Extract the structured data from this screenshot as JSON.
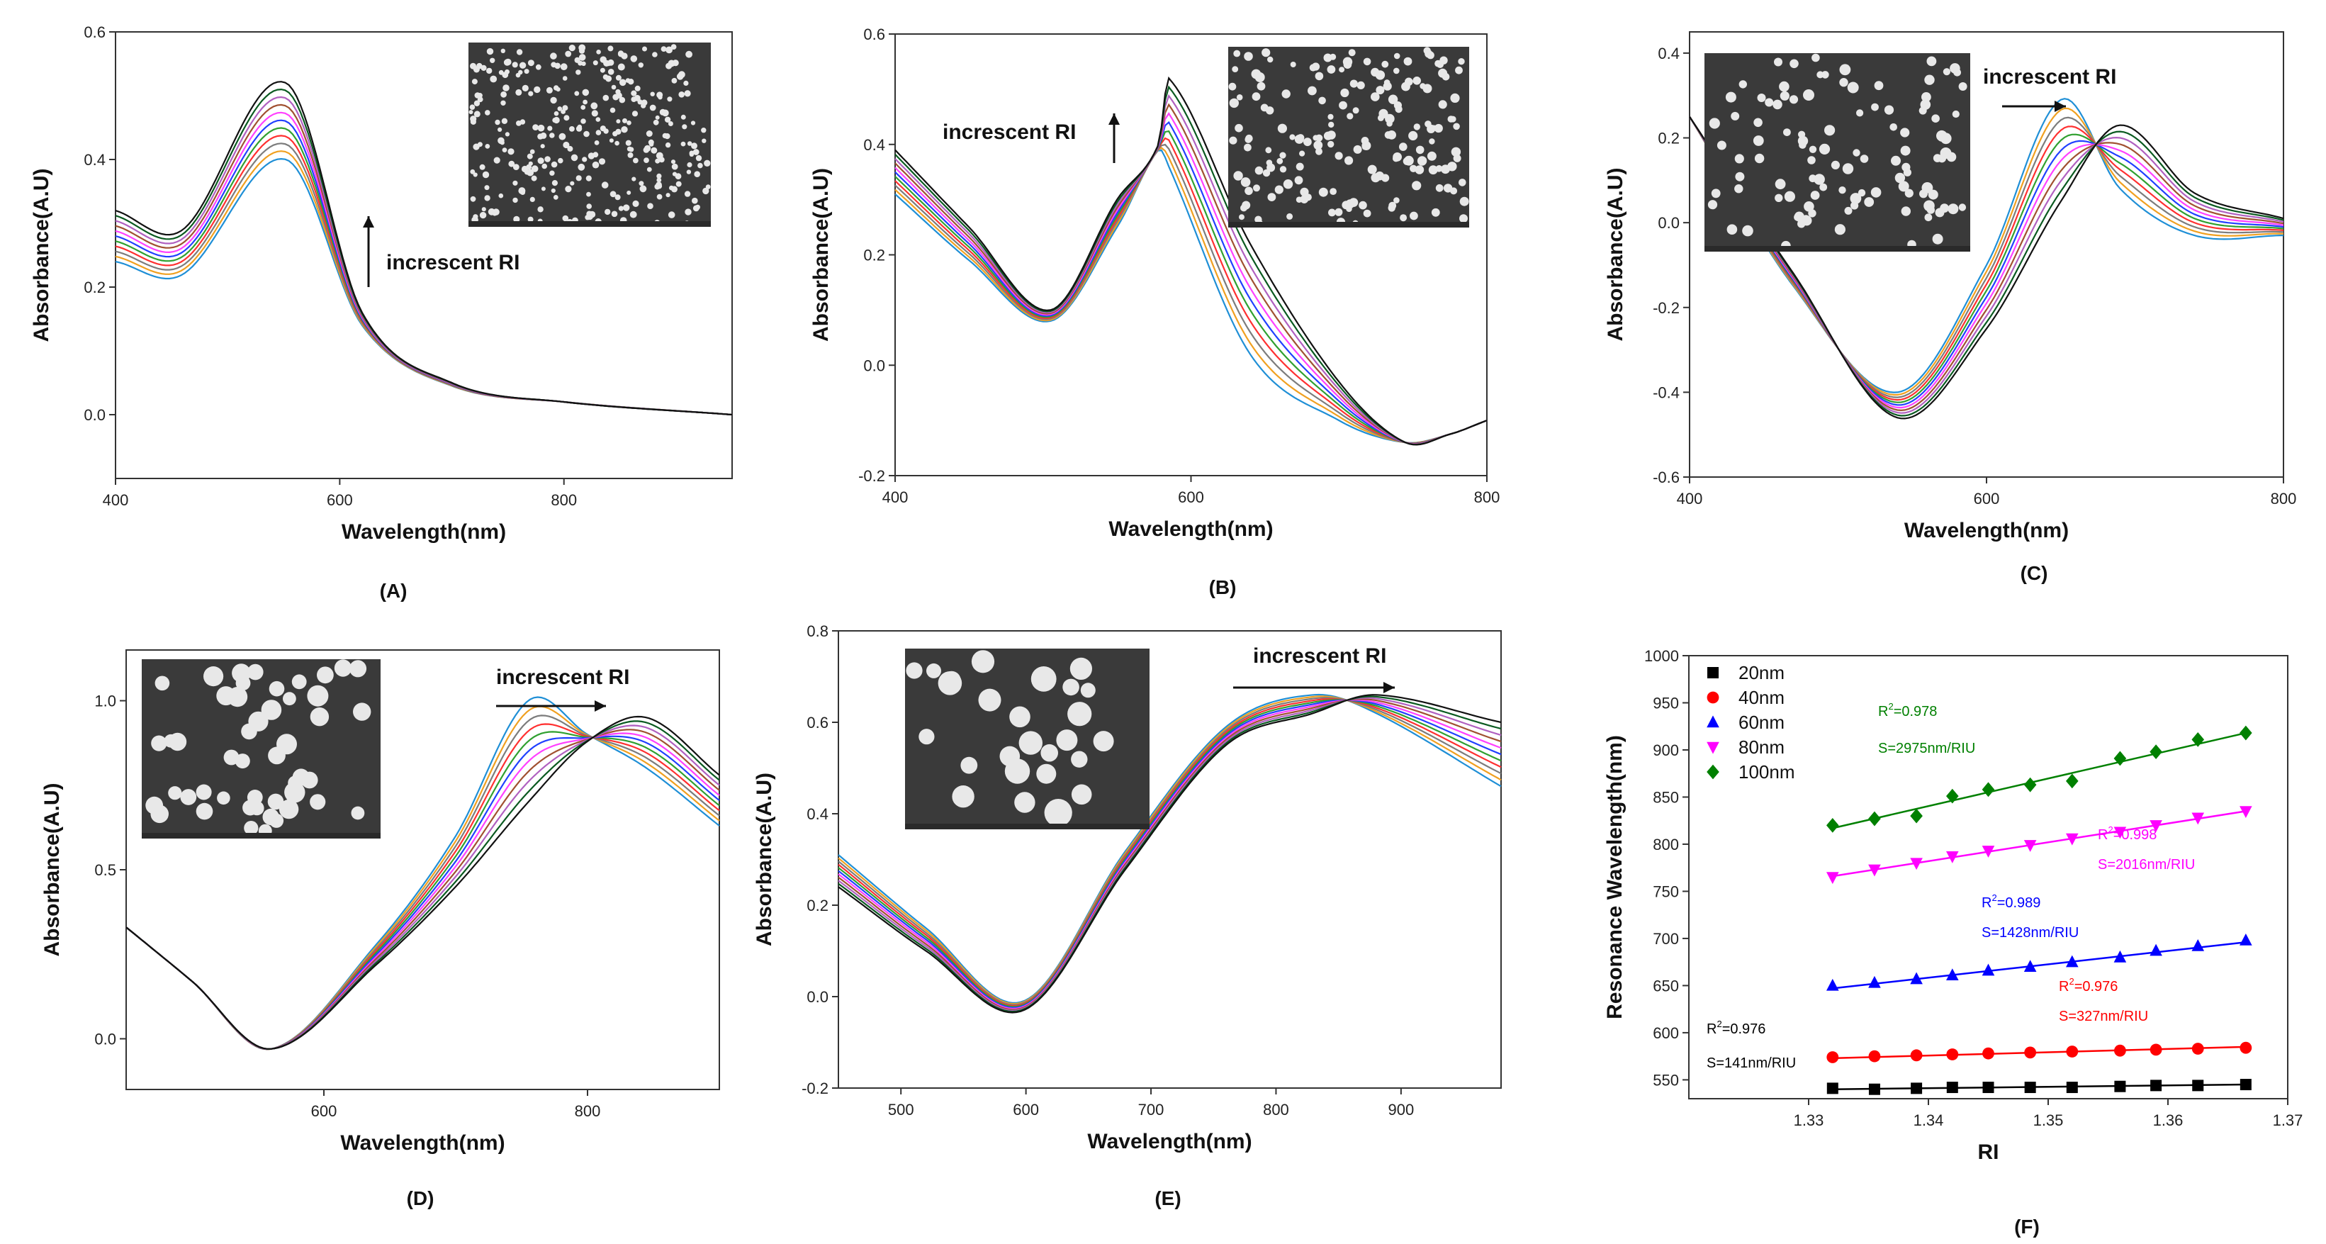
{
  "chart_data": [
    {
      "id": "A",
      "type": "line",
      "panel_label": "(A)",
      "xlabel": "Wavelength(nm)",
      "ylabel": "Absorbance(A.U)",
      "xlim": [
        400,
        950
      ],
      "ylim": [
        -0.1,
        0.6
      ],
      "xticks": [
        400,
        600,
        800
      ],
      "xtick_labels": [
        "400",
        "600",
        "800"
      ],
      "yticks": [
        0.0,
        0.2,
        0.4,
        0.6
      ],
      "ytick_labels": [
        "0.0",
        "0.2",
        "0.4",
        "0.6"
      ],
      "annotation": "increscent RI",
      "annotation_arrow": "up",
      "inset": "SEM micrograph of dense small nanoparticles",
      "curve_model": {
        "kind": "peak",
        "peak_x": [
          552,
          552
        ],
        "peak_y": [
          0.4,
          0.52
        ],
        "n_curves": 11,
        "anchors": [
          [
            400,
            [
              0.24,
              0.32
            ]
          ],
          [
            460,
            [
              0.22,
              0.29
            ]
          ],
          [
            552,
            [
              0.4,
              0.52
            ]
          ],
          [
            620,
            [
              0.14,
              0.16
            ]
          ],
          [
            700,
            [
              0.045,
              0.05
            ]
          ],
          [
            800,
            [
              0.02,
              0.02
            ]
          ],
          [
            950,
            [
              0.0,
              0.0
            ]
          ]
        ]
      }
    },
    {
      "id": "B",
      "type": "line",
      "panel_label": "(B)",
      "xlabel": "Wavelength(nm)",
      "ylabel": "Absorbance(A.U)",
      "xlim": [
        400,
        800
      ],
      "ylim": [
        -0.2,
        0.6
      ],
      "xticks": [
        400,
        600,
        800
      ],
      "xtick_labels": [
        "400",
        "600",
        "800"
      ],
      "yticks": [
        -0.2,
        0.0,
        0.2,
        0.4,
        0.6
      ],
      "ytick_labels": [
        "-0.2",
        "0.0",
        "0.2",
        "0.4",
        "0.6"
      ],
      "annotation": "increscent RI",
      "annotation_arrow": "up",
      "inset": "SEM micrograph of nanoparticle array",
      "curve_model": {
        "kind": "peak",
        "n_curves": 11,
        "anchors": [
          [
            400,
            [
              0.31,
              0.39
            ]
          ],
          [
            450,
            [
              0.19,
              0.25
            ]
          ],
          [
            505,
            [
              0.08,
              0.1
            ]
          ],
          [
            550,
            [
              0.25,
              0.3
            ]
          ],
          [
            578,
            [
              0.39,
              0.4
            ]
          ],
          [
            585,
            [
              0.36,
              0.52
            ]
          ],
          [
            640,
            [
              0.02,
              0.22
            ]
          ],
          [
            700,
            [
              -0.1,
              -0.03
            ]
          ],
          [
            745,
            [
              -0.14,
              -0.14
            ]
          ],
          [
            775,
            [
              -0.125,
              -0.125
            ]
          ],
          [
            800,
            [
              -0.1,
              -0.1
            ]
          ]
        ]
      }
    },
    {
      "id": "C",
      "type": "line",
      "panel_label": "(C)",
      "xlabel": "Wavelength(nm)",
      "ylabel": "Absorbance(A.U)",
      "xlim": [
        400,
        800
      ],
      "ylim": [
        -0.6,
        0.45
      ],
      "xticks": [
        400,
        600,
        800
      ],
      "xtick_labels": [
        "400",
        "600",
        "800"
      ],
      "yticks": [
        -0.6,
        -0.4,
        -0.2,
        0.0,
        0.2,
        0.4
      ],
      "ytick_labels": [
        "-0.6",
        "-0.4",
        "-0.2",
        "0.0",
        "0.2",
        "0.4"
      ],
      "annotation": "increscent RI",
      "annotation_arrow": "right",
      "inset": "SEM micrograph of sparse nanoparticles",
      "curve_model": {
        "kind": "dip-peak",
        "n_curves": 11,
        "anchors": [
          [
            400,
            [
              0.25,
              0.25
            ]
          ],
          [
            470,
            [
              -0.15,
              -0.12
            ]
          ],
          [
            540,
            [
              -0.4,
              -0.46
            ]
          ],
          [
            600,
            [
              -0.1,
              -0.25
            ]
          ],
          [
            650,
            [
              0.29,
              0.05
            ]
          ],
          [
            690,
            [
              0.08,
              0.23
            ]
          ],
          [
            740,
            [
              -0.03,
              0.07
            ]
          ],
          [
            800,
            [
              -0.03,
              0.01
            ]
          ]
        ]
      }
    },
    {
      "id": "D",
      "type": "line",
      "panel_label": "(D)",
      "xlabel": "Wavelength(nm)",
      "ylabel": "Absorbance(A.U)",
      "xlim": [
        450,
        900
      ],
      "ylim": [
        -0.15,
        1.15
      ],
      "xticks": [
        600,
        800
      ],
      "xtick_labels": [
        "600",
        "800"
      ],
      "yticks": [
        0.0,
        0.5,
        1.0
      ],
      "ytick_labels": [
        "0.0",
        "0.5",
        "1.0"
      ],
      "annotation": "increscent RI",
      "annotation_arrow": "right",
      "inset": "SEM micrograph of larger nanoparticles",
      "curve_model": {
        "kind": "dip-peak",
        "n_curves": 11,
        "anchors": [
          [
            450,
            [
              0.33,
              0.33
            ]
          ],
          [
            500,
            [
              0.17,
              0.17
            ]
          ],
          [
            560,
            [
              -0.03,
              -0.03
            ]
          ],
          [
            640,
            [
              0.28,
              0.22
            ]
          ],
          [
            700,
            [
              0.6,
              0.45
            ]
          ],
          [
            755,
            [
              1.0,
              0.7
            ]
          ],
          [
            800,
            [
              0.9,
              0.88
            ]
          ],
          [
            845,
            [
              0.8,
              0.95
            ]
          ],
          [
            900,
            [
              0.63,
              0.78
            ]
          ]
        ]
      }
    },
    {
      "id": "E",
      "type": "line",
      "panel_label": "(E)",
      "xlabel": "Wavelength(nm)",
      "ylabel": "Absorbance(A.U)",
      "xlim": [
        450,
        980
      ],
      "ylim": [
        -0.2,
        0.8
      ],
      "xticks": [
        500,
        600,
        700,
        800,
        900
      ],
      "xtick_labels": [
        "500",
        "600",
        "700",
        "800",
        "900"
      ],
      "yticks": [
        -0.2,
        0.0,
        0.2,
        0.4,
        0.6,
        0.8
      ],
      "ytick_labels": [
        "-0.2",
        "0.0",
        "0.2",
        "0.4",
        "0.6",
        "0.8"
      ],
      "annotation": "increscent RI",
      "annotation_arrow": "right",
      "inset": "SEM micrograph of large sparse nanoparticles",
      "curve_model": {
        "kind": "dip-peak",
        "n_curves": 11,
        "anchors": [
          [
            450,
            [
              0.31,
              0.24
            ]
          ],
          [
            520,
            [
              0.15,
              0.1
            ]
          ],
          [
            598,
            [
              -0.01,
              -0.03
            ]
          ],
          [
            680,
            [
              0.32,
              0.28
            ]
          ],
          [
            760,
            [
              0.59,
              0.55
            ]
          ],
          [
            830,
            [
              0.66,
              0.62
            ]
          ],
          [
            880,
            [
              0.62,
              0.66
            ]
          ],
          [
            980,
            [
              0.46,
              0.6
            ]
          ]
        ]
      }
    },
    {
      "id": "F",
      "type": "scatter",
      "panel_label": "(F)",
      "xlabel": "RI",
      "ylabel": "Resonance Wavelength(nm)",
      "xlim": [
        1.32,
        1.37
      ],
      "ylim": [
        530,
        1000
      ],
      "xticks": [
        1.33,
        1.34,
        1.35,
        1.36,
        1.37
      ],
      "xtick_labels": [
        "1.33",
        "1.34",
        "1.35",
        "1.36",
        "1.37"
      ],
      "yticks": [
        550,
        600,
        650,
        700,
        750,
        800,
        850,
        900,
        950,
        1000
      ],
      "ytick_labels": [
        "550",
        "600",
        "650",
        "700",
        "750",
        "800",
        "850",
        "900",
        "950",
        "1000"
      ],
      "x": [
        1.332,
        1.3355,
        1.339,
        1.342,
        1.345,
        1.3485,
        1.352,
        1.356,
        1.359,
        1.3625,
        1.3665
      ],
      "series": [
        {
          "name": "20nm",
          "marker": "square",
          "color": "#000000",
          "values": [
            541,
            540,
            541,
            542,
            542,
            542,
            542,
            543,
            544,
            544,
            545
          ],
          "fit": [
            540,
            545
          ],
          "r2": "0.976",
          "sensitivity": "S=141nm/RIU"
        },
        {
          "name": "40nm",
          "marker": "circle",
          "color": "#ff0000",
          "values": [
            574,
            575,
            576,
            577,
            578,
            579,
            580,
            581,
            582,
            583,
            584
          ],
          "fit": [
            573,
            585
          ],
          "r2": "0.976",
          "sensitivity": "S=327nm/RIU"
        },
        {
          "name": "60nm",
          "marker": "triangle-up",
          "color": "#0000ff",
          "values": [
            650,
            653,
            657,
            661,
            666,
            670,
            675,
            680,
            687,
            692,
            698
          ],
          "fit": [
            647,
            696
          ],
          "r2": "0.989",
          "sensitivity": "S=1428nm/RIU"
        },
        {
          "name": "80nm",
          "marker": "triangle-down",
          "color": "#ff00ff",
          "values": [
            765,
            773,
            780,
            787,
            793,
            799,
            806,
            813,
            820,
            828,
            835
          ],
          "fit": [
            766,
            835
          ],
          "r2": "0.998",
          "sensitivity": "S=2016nm/RIU"
        },
        {
          "name": "100nm",
          "marker": "diamond",
          "color": "#008000",
          "values": [
            820,
            827,
            830,
            851,
            858,
            863,
            867,
            891,
            898,
            911,
            918
          ],
          "fit": [
            817,
            918
          ],
          "r2": "0.978",
          "sensitivity": "S=2975nm/RIU"
        }
      ],
      "legend_position": "top-left"
    }
  ],
  "spectrum_colors": [
    "#1f8fd6",
    "#f0a020",
    "#7c7c7c",
    "#ff3030",
    "#30a030",
    "#2040ff",
    "#ff40ff",
    "#a05030",
    "#b060c0",
    "#0a5a20",
    "#111111"
  ],
  "fit_r2_prefix": "R",
  "fit_r2_suffix": "="
}
